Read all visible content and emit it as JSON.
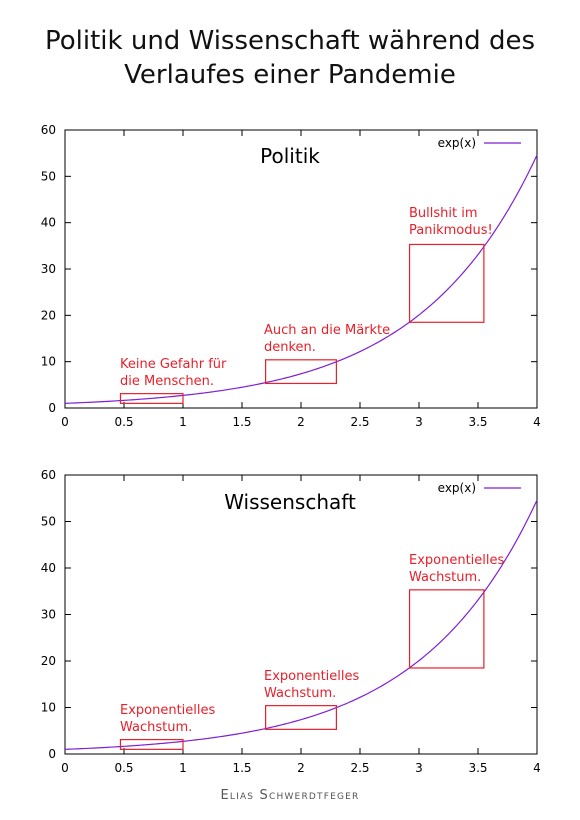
{
  "page": {
    "title_lines": [
      "Politik und Wissenschaft während des",
      "Verlaufes einer Pandemie"
    ],
    "credit": "Elias Schwerdtfeger"
  },
  "colors": {
    "curve": "#7f1fd6",
    "annotation": "#e8202a",
    "axis": "#000000"
  },
  "chart_data": [
    {
      "type": "line",
      "title": "Politik",
      "xlim": [
        0,
        4
      ],
      "ylim": [
        0,
        60
      ],
      "xticks": [
        "0",
        "0.5",
        "1",
        "1.5",
        "2",
        "2.5",
        "3",
        "3.5",
        "4"
      ],
      "yticks": [
        "0",
        "10",
        "20",
        "30",
        "40",
        "50",
        "60"
      ],
      "legend": "top-right",
      "series": [
        {
          "name": "exp(x)",
          "function": "exp",
          "x": [
            0,
            0.5,
            1,
            1.5,
            2,
            2.5,
            3,
            3.5,
            4
          ],
          "y": [
            1,
            1.65,
            2.72,
            4.48,
            7.39,
            12.18,
            20.09,
            33.12,
            54.6
          ]
        }
      ],
      "annotations": [
        {
          "lines": [
            "Keine Gefahr für",
            "die Menschen."
          ],
          "box": {
            "x": [
              0.47,
              1.0
            ],
            "y": [
              1.0,
              3.1
            ]
          }
        },
        {
          "lines": [
            "Auch an die Märkte",
            "denken."
          ],
          "box": {
            "x": [
              1.7,
              2.3
            ],
            "y": [
              5.3,
              10.4
            ]
          }
        },
        {
          "lines": [
            "Bullshit im",
            "Panikmodus!"
          ],
          "box": {
            "x": [
              2.92,
              3.55
            ],
            "y": [
              18.5,
              35.3
            ]
          }
        }
      ]
    },
    {
      "type": "line",
      "title": "Wissenschaft",
      "xlim": [
        0,
        4
      ],
      "ylim": [
        0,
        60
      ],
      "xticks": [
        "0",
        "0.5",
        "1",
        "1.5",
        "2",
        "2.5",
        "3",
        "3.5",
        "4"
      ],
      "yticks": [
        "0",
        "10",
        "20",
        "30",
        "40",
        "50",
        "60"
      ],
      "legend": "top-right",
      "series": [
        {
          "name": "exp(x)",
          "function": "exp",
          "x": [
            0,
            0.5,
            1,
            1.5,
            2,
            2.5,
            3,
            3.5,
            4
          ],
          "y": [
            1,
            1.65,
            2.72,
            4.48,
            7.39,
            12.18,
            20.09,
            33.12,
            54.6
          ]
        }
      ],
      "annotations": [
        {
          "lines": [
            "Exponentielles",
            "Wachstum."
          ],
          "box": {
            "x": [
              0.47,
              1.0
            ],
            "y": [
              1.0,
              3.1
            ]
          }
        },
        {
          "lines": [
            "Exponentielles",
            "Wachstum."
          ],
          "box": {
            "x": [
              1.7,
              2.3
            ],
            "y": [
              5.3,
              10.4
            ]
          }
        },
        {
          "lines": [
            "Exponentielles",
            "Wachstum."
          ],
          "box": {
            "x": [
              2.92,
              3.55
            ],
            "y": [
              18.5,
              35.3
            ]
          }
        }
      ]
    }
  ]
}
